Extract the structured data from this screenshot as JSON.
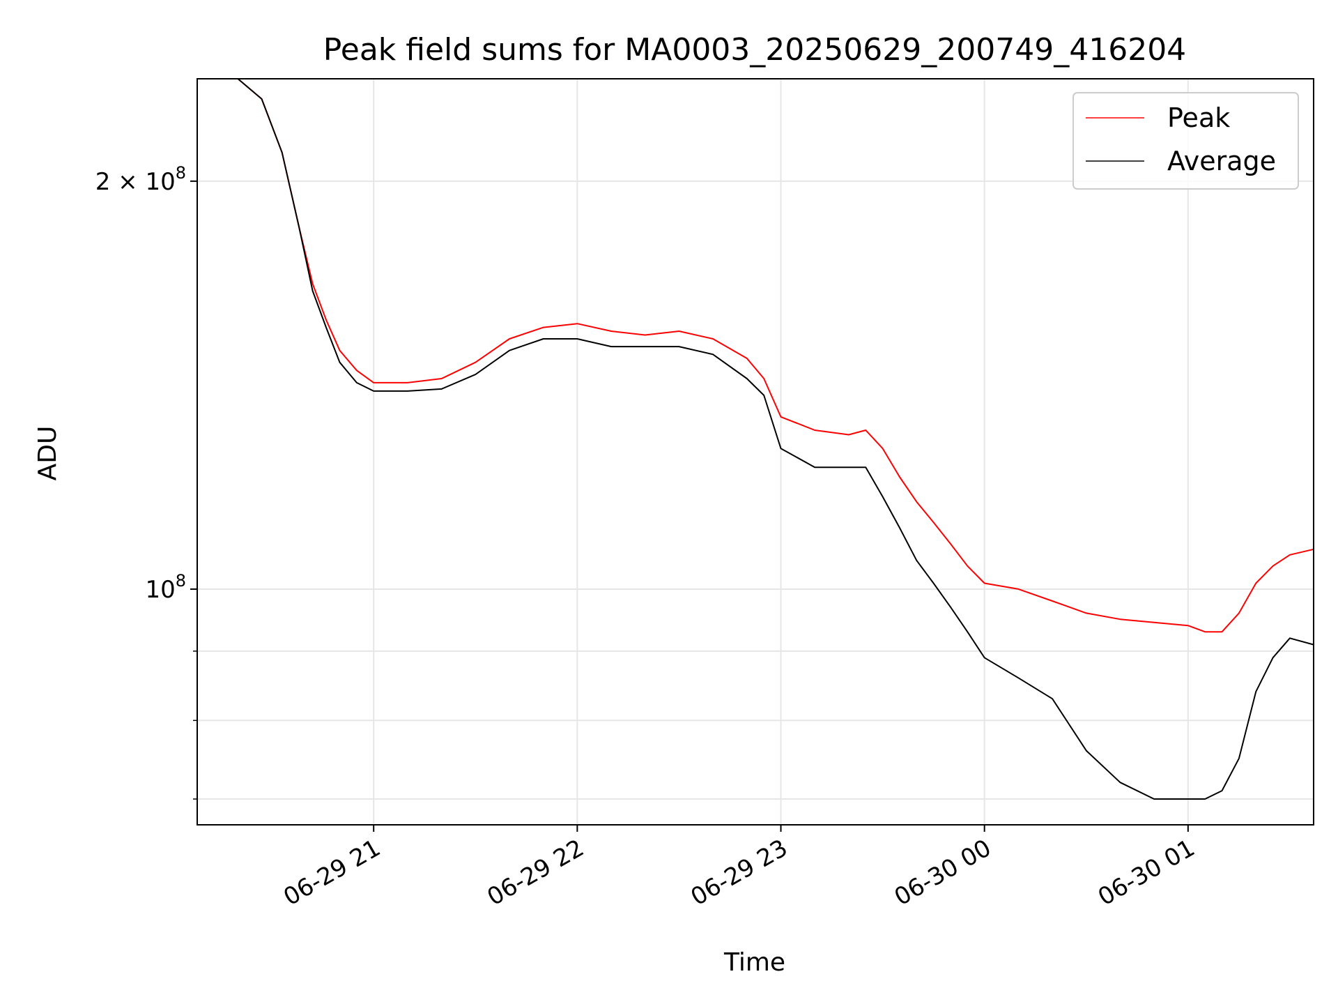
{
  "chart_data": {
    "type": "line",
    "title": "Peak field sums for MA0003_20250629_200749_416204",
    "xlabel": "Time",
    "ylabel": "ADU",
    "yscale": "log",
    "ylim": [
      67000000,
      238000000
    ],
    "xlim": [
      "2025-06-29 20:08",
      "2025-06-30 01:37"
    ],
    "x_ticks": [
      "2025-06-29 21:00",
      "2025-06-29 22:00",
      "2025-06-29 23:00",
      "2025-06-30 00:00",
      "2025-06-30 01:00"
    ],
    "x_tick_labels": [
      "06-29 21",
      "06-29 22",
      "06-29 23",
      "06-30 00",
      "06-30 01"
    ],
    "y_ticks": [
      {
        "value": 100000000,
        "base": "10",
        "exp": "8",
        "mult": ""
      },
      {
        "value": 200000000,
        "base": "10",
        "exp": "8",
        "mult": "2 × "
      }
    ],
    "y_minor_ticks": [
      70000000,
      80000000,
      90000000
    ],
    "grid": true,
    "legend_position": "top-right",
    "series": [
      {
        "name": "Peak",
        "color": "#ff0000",
        "x": [
          "2025-06-29 20:08",
          "2025-06-29 20:20",
          "2025-06-29 20:27",
          "2025-06-29 20:33",
          "2025-06-29 20:38",
          "2025-06-29 20:42",
          "2025-06-29 20:46",
          "2025-06-29 20:50",
          "2025-06-29 20:55",
          "2025-06-29 21:00",
          "2025-06-29 21:10",
          "2025-06-29 21:20",
          "2025-06-29 21:30",
          "2025-06-29 21:40",
          "2025-06-29 21:50",
          "2025-06-29 22:00",
          "2025-06-29 22:10",
          "2025-06-29 22:20",
          "2025-06-29 22:30",
          "2025-06-29 22:40",
          "2025-06-29 22:50",
          "2025-06-29 22:55",
          "2025-06-29 23:00",
          "2025-06-29 23:10",
          "2025-06-29 23:20",
          "2025-06-29 23:25",
          "2025-06-29 23:30",
          "2025-06-29 23:35",
          "2025-06-29 23:40",
          "2025-06-29 23:45",
          "2025-06-29 23:50",
          "2025-06-29 23:55",
          "2025-06-30 00:00",
          "2025-06-30 00:10",
          "2025-06-30 00:20",
          "2025-06-30 00:30",
          "2025-06-30 00:40",
          "2025-06-30 00:50",
          "2025-06-30 01:00",
          "2025-06-30 01:05",
          "2025-06-30 01:10",
          "2025-06-30 01:15",
          "2025-06-30 01:20",
          "2025-06-30 01:25",
          "2025-06-30 01:30",
          "2025-06-30 01:37"
        ],
        "values": [
          238000000,
          238000000,
          230000000,
          210000000,
          185000000,
          168000000,
          158000000,
          150000000,
          145000000,
          142000000,
          142000000,
          143000000,
          147000000,
          153000000,
          156000000,
          157000000,
          155000000,
          154000000,
          155000000,
          153000000,
          148000000,
          143000000,
          134000000,
          131000000,
          130000000,
          131000000,
          127000000,
          121000000,
          116000000,
          112000000,
          108000000,
          104000000,
          101000000,
          100000000,
          98000000,
          96000000,
          95000000,
          94500000,
          94000000,
          93000000,
          93000000,
          96000000,
          101000000,
          104000000,
          106000000,
          107000000
        ]
      },
      {
        "name": "Average",
        "color": "#000000",
        "x": [
          "2025-06-29 20:08",
          "2025-06-29 20:20",
          "2025-06-29 20:27",
          "2025-06-29 20:33",
          "2025-06-29 20:38",
          "2025-06-29 20:42",
          "2025-06-29 20:46",
          "2025-06-29 20:50",
          "2025-06-29 20:55",
          "2025-06-29 21:00",
          "2025-06-29 21:10",
          "2025-06-29 21:20",
          "2025-06-29 21:30",
          "2025-06-29 21:40",
          "2025-06-29 21:50",
          "2025-06-29 22:00",
          "2025-06-29 22:10",
          "2025-06-29 22:20",
          "2025-06-29 22:30",
          "2025-06-29 22:40",
          "2025-06-29 22:50",
          "2025-06-29 22:55",
          "2025-06-29 23:00",
          "2025-06-29 23:10",
          "2025-06-29 23:20",
          "2025-06-29 23:25",
          "2025-06-29 23:30",
          "2025-06-29 23:35",
          "2025-06-29 23:40",
          "2025-06-29 23:45",
          "2025-06-29 23:50",
          "2025-06-29 23:55",
          "2025-06-30 00:00",
          "2025-06-30 00:10",
          "2025-06-30 00:20",
          "2025-06-30 00:30",
          "2025-06-30 00:40",
          "2025-06-30 00:50",
          "2025-06-30 01:00",
          "2025-06-30 01:05",
          "2025-06-30 01:10",
          "2025-06-30 01:15",
          "2025-06-30 01:20",
          "2025-06-30 01:25",
          "2025-06-30 01:30",
          "2025-06-30 01:37"
        ],
        "values": [
          238000000,
          238000000,
          230000000,
          210000000,
          185000000,
          166000000,
          156000000,
          147000000,
          142000000,
          140000000,
          140000000,
          140500000,
          144000000,
          150000000,
          153000000,
          153000000,
          151000000,
          151000000,
          151000000,
          149000000,
          143000000,
          139000000,
          127000000,
          123000000,
          123000000,
          123000000,
          117000000,
          111000000,
          105000000,
          101000000,
          97000000,
          93000000,
          89000000,
          86000000,
          83000000,
          76000000,
          72000000,
          70000000,
          70000000,
          70000000,
          71000000,
          75000000,
          84000000,
          89000000,
          92000000,
          91000000
        ]
      }
    ]
  }
}
